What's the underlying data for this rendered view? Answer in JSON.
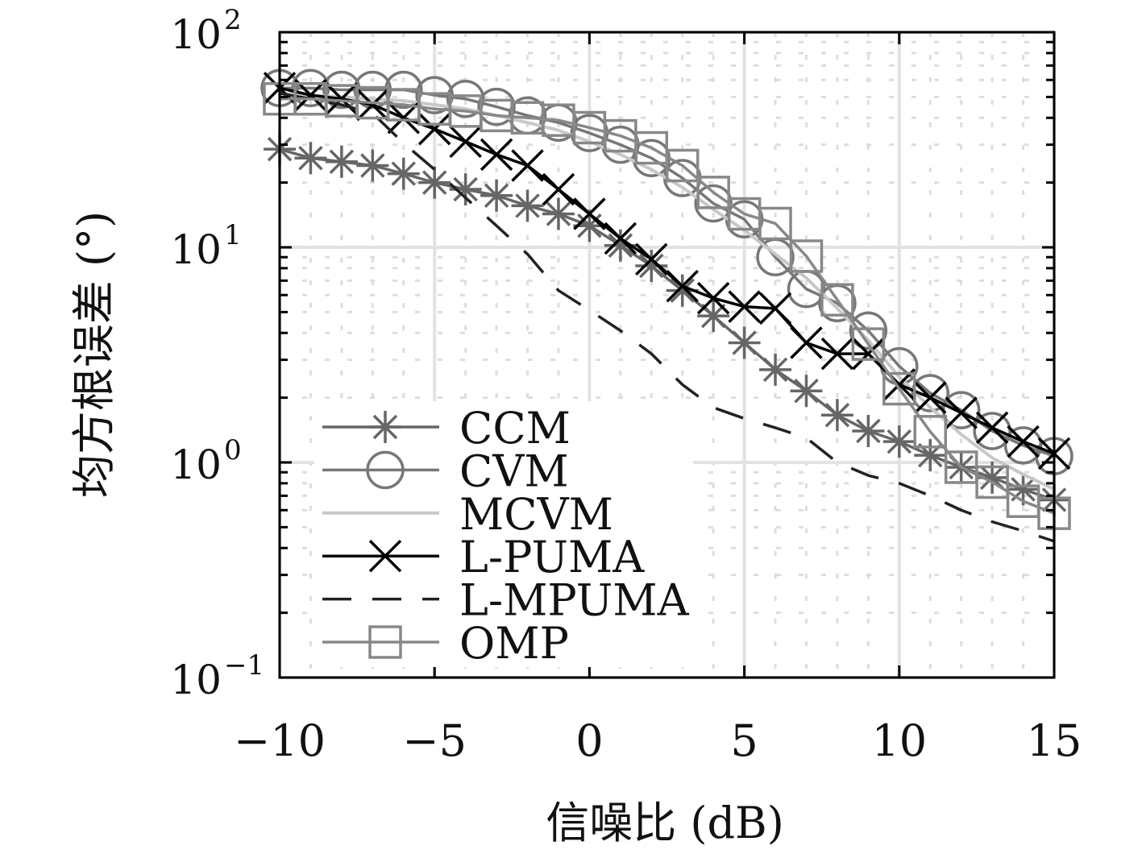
{
  "chart_data": {
    "type": "line",
    "title": "",
    "xlabel": "信噪比 (dB)",
    "ylabel": "均方根误差 (°)",
    "xlim": [
      -10,
      15
    ],
    "ylim": [
      0.1,
      100
    ],
    "yscale": "log",
    "grid": true,
    "legend_position": "bottom-left",
    "x_ticks": [
      -10,
      -5,
      0,
      5,
      10,
      15
    ],
    "x_tick_labels": [
      "−10",
      "−5",
      "0",
      "5",
      "10",
      "15"
    ],
    "y_ticks": [
      100,
      10,
      1,
      0.1
    ],
    "y_tick_labels": [
      {
        "base": "10",
        "exp": "2"
      },
      {
        "base": "10",
        "exp": "1"
      },
      {
        "base": "10",
        "exp": "0"
      },
      {
        "base": "10",
        "exp": "−1"
      }
    ],
    "x": [
      -10,
      -9,
      -8,
      -7,
      -6,
      -5,
      -4,
      -3,
      -2,
      -1,
      0,
      1,
      2,
      3,
      4,
      5,
      6,
      7,
      8,
      9,
      10,
      11,
      12,
      13,
      14,
      15
    ],
    "series": [
      {
        "name": "CCM",
        "marker": "asterisk",
        "color": "#666666",
        "dash": false,
        "values": [
          28.6,
          26,
          25,
          24,
          22,
          20,
          18.6,
          17.4,
          15.6,
          14.3,
          12.6,
          10.2,
          8.2,
          6.3,
          4.8,
          3.6,
          2.7,
          2.15,
          1.66,
          1.4,
          1.25,
          1.08,
          0.95,
          0.85,
          0.75,
          0.67
        ]
      },
      {
        "name": "CVM",
        "marker": "circle",
        "color": "#777777",
        "dash": false,
        "values": [
          55,
          55,
          54,
          54,
          54,
          51,
          49,
          45,
          41,
          38,
          34,
          30,
          26,
          21,
          16,
          13.5,
          9,
          6.4,
          5.5,
          4.1,
          2.8,
          2.1,
          1.75,
          1.4,
          1.2,
          1.07
        ]
      },
      {
        "name": "MCVM",
        "marker": "none",
        "color": "#c8c8c8",
        "dash": false,
        "values": [
          52,
          51,
          50,
          49,
          48,
          46,
          44,
          41,
          38,
          35,
          31,
          27,
          23,
          19,
          15,
          12,
          9.3,
          7.2,
          5.2,
          3.7,
          2.5,
          1.8,
          1.35,
          1.05,
          0.88,
          0.75
        ]
      },
      {
        "name": "L-PUMA",
        "marker": "x",
        "color": "#000000",
        "dash": false,
        "values": [
          55,
          51,
          49,
          46,
          40,
          35.5,
          31,
          27,
          24,
          18.6,
          14.3,
          11,
          8.8,
          6.6,
          5.8,
          5.3,
          5.2,
          3.6,
          3.2,
          3.2,
          2.3,
          2.0,
          1.7,
          1.45,
          1.25,
          1.1
        ]
      },
      {
        "name": "L-MPUMA",
        "marker": "none",
        "color": "#222222",
        "dash": true,
        "values": [
          52,
          49,
          46,
          42,
          30.5,
          23,
          17,
          12.6,
          9.3,
          6.3,
          5.1,
          4.1,
          3.2,
          2.3,
          1.8,
          1.6,
          1.45,
          1.3,
          1.0,
          0.87,
          0.8,
          0.7,
          0.6,
          0.53,
          0.48,
          0.43
        ]
      },
      {
        "name": "OMP",
        "marker": "square",
        "color": "#888888",
        "dash": false,
        "values": [
          49,
          49,
          48,
          47,
          46,
          44,
          43,
          41,
          40,
          39,
          36,
          33,
          29,
          24,
          18,
          14.3,
          12.9,
          9.1,
          5.7,
          3.55,
          2.2,
          1.39,
          0.95,
          0.81,
          0.66,
          0.58
        ]
      }
    ]
  }
}
